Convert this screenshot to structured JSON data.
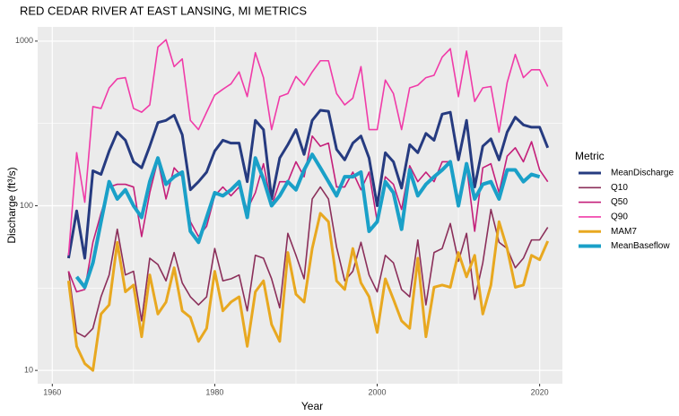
{
  "chart_data": {
    "type": "line",
    "title": "RED CEDAR RIVER AT EAST LANSING, MI  METRICS",
    "x_label": "Year",
    "y_label": "Discharge (ft³/s)",
    "legend_title": "Metric",
    "log_y": true,
    "grid": true,
    "legend": "right",
    "xlim": [
      1958.2,
      2022.8
    ],
    "xticks": [
      1960,
      1980,
      2000,
      2020
    ],
    "ylim": [
      8.3,
      1220
    ],
    "yticks": [
      10,
      100,
      1000
    ],
    "x": [
      1962,
      1963,
      1964,
      1965,
      1966,
      1967,
      1968,
      1969,
      1970,
      1971,
      1972,
      1973,
      1974,
      1975,
      1976,
      1977,
      1978,
      1979,
      1980,
      1981,
      1982,
      1983,
      1984,
      1985,
      1986,
      1987,
      1988,
      1989,
      1990,
      1991,
      1992,
      1993,
      1994,
      1995,
      1996,
      1997,
      1998,
      1999,
      2000,
      2001,
      2002,
      2003,
      2004,
      2005,
      2006,
      2007,
      2008,
      2009,
      2010,
      2011,
      2012,
      2013,
      2014,
      2015,
      2016,
      2017,
      2018,
      2019,
      2020,
      2021
    ],
    "series": [
      {
        "name": "MeanDischarge",
        "color": "#263b80",
        "line_width": 3,
        "values": [
          48,
          93,
          48,
          163,
          155,
          215,
          280,
          250,
          185,
          170,
          230,
          320,
          330,
          355,
          270,
          125,
          140,
          160,
          215,
          250,
          240,
          240,
          140,
          330,
          290,
          110,
          195,
          235,
          290,
          205,
          330,
          380,
          375,
          220,
          190,
          240,
          265,
          195,
          100,
          210,
          185,
          128,
          235,
          210,
          275,
          250,
          360,
          370,
          190,
          330,
          130,
          230,
          255,
          190,
          280,
          345,
          310,
          300,
          300,
          225
        ]
      },
      {
        "name": "Q10",
        "color": "#8b2f5a",
        "line_width": 1.6,
        "values": [
          40,
          17,
          16,
          18,
          28,
          38,
          72,
          38,
          40,
          20,
          48,
          44,
          35,
          52,
          34,
          28,
          25,
          28,
          55,
          35,
          36,
          38,
          23,
          50,
          48,
          36,
          24,
          68,
          50,
          36,
          110,
          130,
          110,
          56,
          35,
          40,
          60,
          38,
          30,
          50,
          45,
          31,
          28,
          62,
          25,
          52,
          55,
          78,
          46,
          68,
          27,
          45,
          95,
          60,
          55,
          42,
          48,
          62,
          62,
          74
        ]
      },
      {
        "name": "Q50",
        "color": "#c41f7a",
        "line_width": 1.6,
        "values": [
          40,
          30,
          31,
          60,
          90,
          130,
          135,
          135,
          130,
          65,
          120,
          190,
          110,
          170,
          150,
          80,
          65,
          75,
          115,
          130,
          115,
          130,
          95,
          120,
          180,
          100,
          140,
          140,
          185,
          150,
          265,
          230,
          240,
          130,
          130,
          160,
          125,
          160,
          80,
          150,
          135,
          95,
          175,
          140,
          160,
          140,
          185,
          185,
          110,
          175,
          70,
          170,
          180,
          120,
          200,
          225,
          185,
          245,
          165,
          140
        ]
      },
      {
        "name": "Q90",
        "color": "#f03ba8",
        "line_width": 1.6,
        "values": [
          50,
          210,
          105,
          400,
          390,
          520,
          590,
          600,
          390,
          370,
          410,
          920,
          1020,
          700,
          780,
          330,
          290,
          370,
          470,
          510,
          550,
          650,
          460,
          850,
          600,
          290,
          460,
          480,
          610,
          540,
          650,
          760,
          760,
          480,
          410,
          450,
          700,
          290,
          290,
          580,
          480,
          290,
          520,
          540,
          600,
          620,
          800,
          900,
          460,
          870,
          430,
          520,
          530,
          280,
          560,
          830,
          600,
          670,
          670,
          530
        ]
      },
      {
        "name": "MAM7",
        "color": "#e8a820",
        "line_width": 3,
        "values": [
          35,
          14,
          11,
          10,
          22,
          25,
          60,
          30,
          33,
          16,
          38,
          22,
          26,
          42,
          23,
          21,
          15,
          18,
          40,
          23,
          26,
          28,
          14,
          30,
          35,
          19,
          15,
          52,
          29,
          26,
          55,
          90,
          80,
          35,
          31,
          55,
          34,
          28,
          17,
          36,
          27,
          20,
          18,
          48,
          16,
          32,
          33,
          32,
          52,
          37,
          50,
          22,
          33,
          80,
          55,
          32,
          33,
          50,
          47,
          61
        ]
      },
      {
        "name": "MeanBaseflow",
        "color": "#1aa0c8",
        "line_width": 4,
        "values": [
          null,
          37,
          32,
          45,
          80,
          140,
          110,
          125,
          100,
          85,
          140,
          195,
          135,
          150,
          160,
          70,
          60,
          85,
          120,
          115,
          125,
          140,
          85,
          195,
          145,
          100,
          115,
          140,
          125,
          165,
          205,
          170,
          140,
          115,
          150,
          150,
          160,
          70,
          80,
          140,
          120,
          72,
          165,
          115,
          135,
          150,
          165,
          185,
          100,
          180,
          110,
          135,
          140,
          110,
          165,
          165,
          140,
          155,
          150,
          null
        ]
      }
    ]
  }
}
